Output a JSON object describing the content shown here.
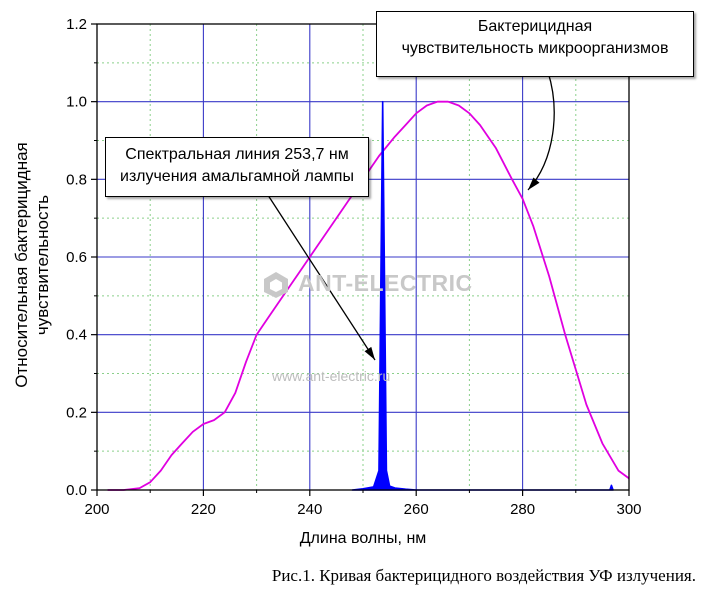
{
  "chart_data": {
    "type": "line",
    "xlabel": "Длина волны, нм",
    "ylabel": "Относительная бактерицидная\nчувствительность",
    "xlim": [
      200,
      300
    ],
    "ylim": [
      0,
      1.2
    ],
    "xticks": [
      "200",
      "220",
      "240",
      "260",
      "280",
      "300"
    ],
    "yticks": [
      "0.0",
      "0.2",
      "0.4",
      "0.6",
      "0.8",
      "1.0",
      "1.2"
    ],
    "grid": true,
    "series": [
      {
        "name": "Бактерицидная чувствительность микроорганизмов",
        "color": "#e000e0",
        "x": [
          202,
          205,
          208,
          210,
          212,
          214,
          216,
          218,
          220,
          222,
          224,
          226,
          228,
          230,
          232,
          235,
          238,
          240,
          242,
          245,
          248,
          250,
          253,
          256,
          258,
          260,
          262,
          264,
          266,
          268,
          270,
          272,
          275,
          278,
          280,
          282,
          285,
          288,
          290,
          292,
          295,
          298,
          300
        ],
        "y": [
          0.0,
          0.0,
          0.005,
          0.02,
          0.05,
          0.09,
          0.12,
          0.15,
          0.17,
          0.18,
          0.2,
          0.25,
          0.33,
          0.4,
          0.44,
          0.5,
          0.56,
          0.6,
          0.64,
          0.7,
          0.76,
          0.8,
          0.86,
          0.91,
          0.94,
          0.97,
          0.99,
          1.0,
          1.0,
          0.99,
          0.97,
          0.94,
          0.88,
          0.8,
          0.75,
          0.68,
          0.55,
          0.4,
          0.31,
          0.22,
          0.12,
          0.05,
          0.03
        ]
      },
      {
        "name": "Спектральная линия 253,7 нм излучения амальгамной лампы",
        "color": "#0000ff",
        "x": [
          248,
          250,
          252,
          253.0,
          253.4,
          253.7,
          254.0,
          254.4,
          255.0,
          256,
          258,
          260,
          262,
          296.4,
          296.7,
          297.0
        ],
        "y": [
          0.0,
          0.003,
          0.008,
          0.05,
          0.6,
          1.0,
          0.6,
          0.05,
          0.01,
          0.005,
          0.002,
          0.0,
          0.0,
          0.0,
          0.012,
          0.0
        ]
      }
    ],
    "annotations": [
      {
        "lines": [
          "Бактерицидная",
          "чувствительность микроорганизмов"
        ]
      },
      {
        "lines": [
          "Спектральная линия 253,7 нм",
          "излучения амальгамной лампы"
        ]
      }
    ]
  },
  "watermark": {
    "brand": "ANT-ELECTRIC",
    "site": "www.ant-electric.ru"
  },
  "caption": "Рис.1. Кривая бактерицидного воздействия УФ излучения."
}
